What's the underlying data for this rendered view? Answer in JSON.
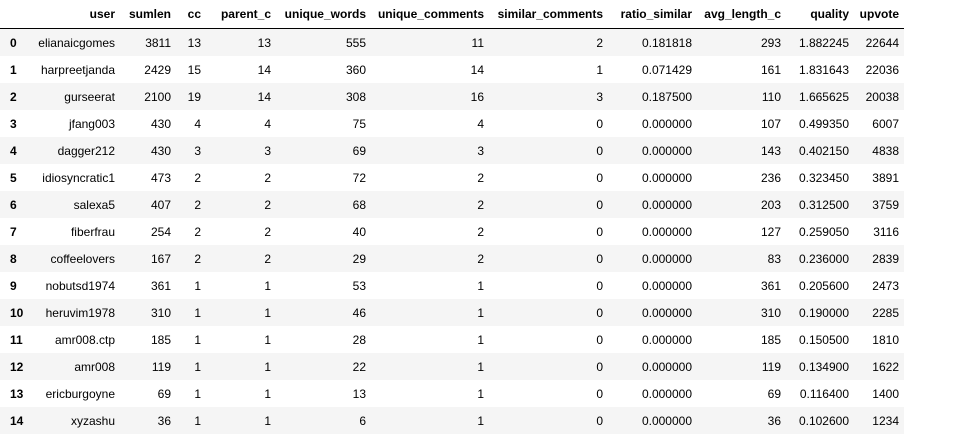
{
  "table": {
    "columns": [
      "",
      "user",
      "sumlen",
      "cc",
      "parent_c",
      "unique_words",
      "unique_comments",
      "similar_comments",
      "ratio_similar",
      "avg_length_c",
      "quality",
      "upvote"
    ],
    "rows": [
      [
        "0",
        "elianaicgomes",
        "3811",
        "13",
        "13",
        "555",
        "11",
        "2",
        "0.181818",
        "293",
        "1.882245",
        "22644"
      ],
      [
        "1",
        "harpreetjanda",
        "2429",
        "15",
        "14",
        "360",
        "14",
        "1",
        "0.071429",
        "161",
        "1.831643",
        "22036"
      ],
      [
        "2",
        "gurseerat",
        "2100",
        "19",
        "14",
        "308",
        "16",
        "3",
        "0.187500",
        "110",
        "1.665625",
        "20038"
      ],
      [
        "3",
        "jfang003",
        "430",
        "4",
        "4",
        "75",
        "4",
        "0",
        "0.000000",
        "107",
        "0.499350",
        "6007"
      ],
      [
        "4",
        "dagger212",
        "430",
        "3",
        "3",
        "69",
        "3",
        "0",
        "0.000000",
        "143",
        "0.402150",
        "4838"
      ],
      [
        "5",
        "idiosyncratic1",
        "473",
        "2",
        "2",
        "72",
        "2",
        "0",
        "0.000000",
        "236",
        "0.323450",
        "3891"
      ],
      [
        "6",
        "salexa5",
        "407",
        "2",
        "2",
        "68",
        "2",
        "0",
        "0.000000",
        "203",
        "0.312500",
        "3759"
      ],
      [
        "7",
        "fiberfrau",
        "254",
        "2",
        "2",
        "40",
        "2",
        "0",
        "0.000000",
        "127",
        "0.259050",
        "3116"
      ],
      [
        "8",
        "coffeelovers",
        "167",
        "2",
        "2",
        "29",
        "2",
        "0",
        "0.000000",
        "83",
        "0.236000",
        "2839"
      ],
      [
        "9",
        "nobutsd1974",
        "361",
        "1",
        "1",
        "53",
        "1",
        "0",
        "0.000000",
        "361",
        "0.205600",
        "2473"
      ],
      [
        "10",
        "heruvim1978",
        "310",
        "1",
        "1",
        "46",
        "1",
        "0",
        "0.000000",
        "310",
        "0.190000",
        "2285"
      ],
      [
        "11",
        "amr008.ctp",
        "185",
        "1",
        "1",
        "28",
        "1",
        "0",
        "0.000000",
        "185",
        "0.150500",
        "1810"
      ],
      [
        "12",
        "amr008",
        "119",
        "1",
        "1",
        "22",
        "1",
        "0",
        "0.000000",
        "119",
        "0.134900",
        "1622"
      ],
      [
        "13",
        "ericburgoyne",
        "69",
        "1",
        "1",
        "13",
        "1",
        "0",
        "0.000000",
        "69",
        "0.116400",
        "1400"
      ],
      [
        "14",
        "xyzashu",
        "36",
        "1",
        "1",
        "6",
        "1",
        "0",
        "0.000000",
        "36",
        "0.102600",
        "1234"
      ]
    ]
  }
}
